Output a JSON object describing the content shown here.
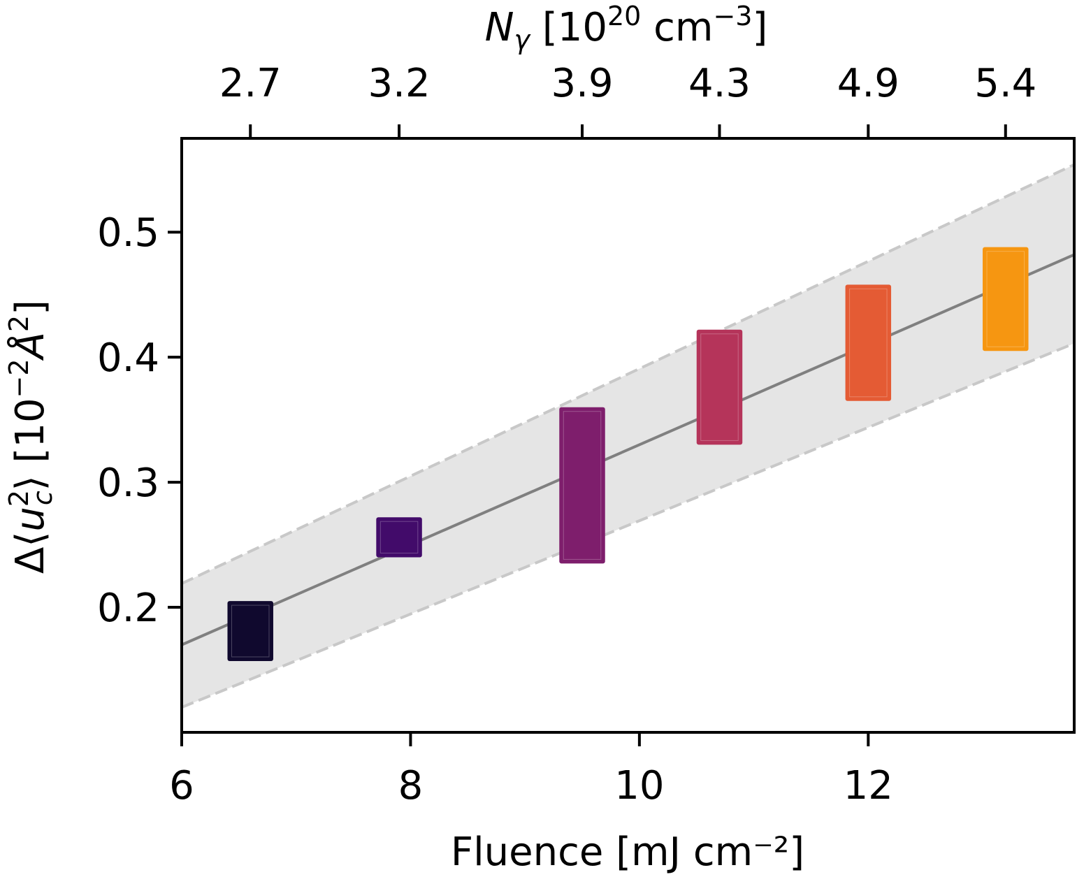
{
  "chart_data": {
    "type": "scatter",
    "xlabel": "Fluence [mJ cm⁻²]",
    "ylabel_parts": {
      "delta": "Δ",
      "u": "u",
      "sup": "2",
      "sub": "c",
      "unit_pre": "[10",
      "unit_exp": "−2",
      "unit_sym": "Å",
      "unit_sym_exp": "2",
      "close": "]"
    },
    "top_label_parts": {
      "N": "N",
      "sub": "γ",
      "pre": "[10",
      "exp1": "20",
      "mid": "cm",
      "exp2": "−3",
      "close": "]"
    },
    "xlim": [
      6,
      13.8
    ],
    "ylim": [
      0.1,
      0.575
    ],
    "xticks": [
      6,
      8,
      10,
      12
    ],
    "yticks": [
      0.2,
      0.3,
      0.4,
      0.5
    ],
    "top_ticks": [
      {
        "x": 6.6,
        "label": "2.7"
      },
      {
        "x": 7.9,
        "label": "3.2"
      },
      {
        "x": 9.5,
        "label": "3.9"
      },
      {
        "x": 10.7,
        "label": "4.3"
      },
      {
        "x": 12.0,
        "label": "4.9"
      },
      {
        "x": 13.2,
        "label": "5.4"
      }
    ],
    "points": [
      {
        "x": 6.6,
        "xerr": 0.2,
        "ylow": 0.157,
        "yhigh": 0.205,
        "color": "#10092e"
      },
      {
        "x": 7.9,
        "xerr": 0.2,
        "ylow": 0.24,
        "yhigh": 0.272,
        "color": "#420b6a"
      },
      {
        "x": 9.5,
        "xerr": 0.2,
        "ylow": 0.235,
        "yhigh": 0.36,
        "color": "#7e1e6c"
      },
      {
        "x": 10.7,
        "xerr": 0.2,
        "ylow": 0.33,
        "yhigh": 0.422,
        "color": "#b5345a"
      },
      {
        "x": 12.0,
        "xerr": 0.2,
        "ylow": 0.365,
        "yhigh": 0.458,
        "color": "#e45b34"
      },
      {
        "x": 13.2,
        "xerr": 0.2,
        "ylow": 0.405,
        "yhigh": 0.488,
        "color": "#f69611"
      }
    ],
    "fit": {
      "line": [
        [
          6,
          0.17
        ],
        [
          13.8,
          0.482
        ]
      ],
      "upper": [
        [
          6,
          0.219
        ],
        [
          13.8,
          0.554
        ]
      ],
      "lower": [
        [
          6,
          0.12
        ],
        [
          13.8,
          0.411
        ]
      ],
      "line_color": "#808080",
      "band_color": "#e5e5e5",
      "bound_color": "#c8c8c8"
    }
  }
}
